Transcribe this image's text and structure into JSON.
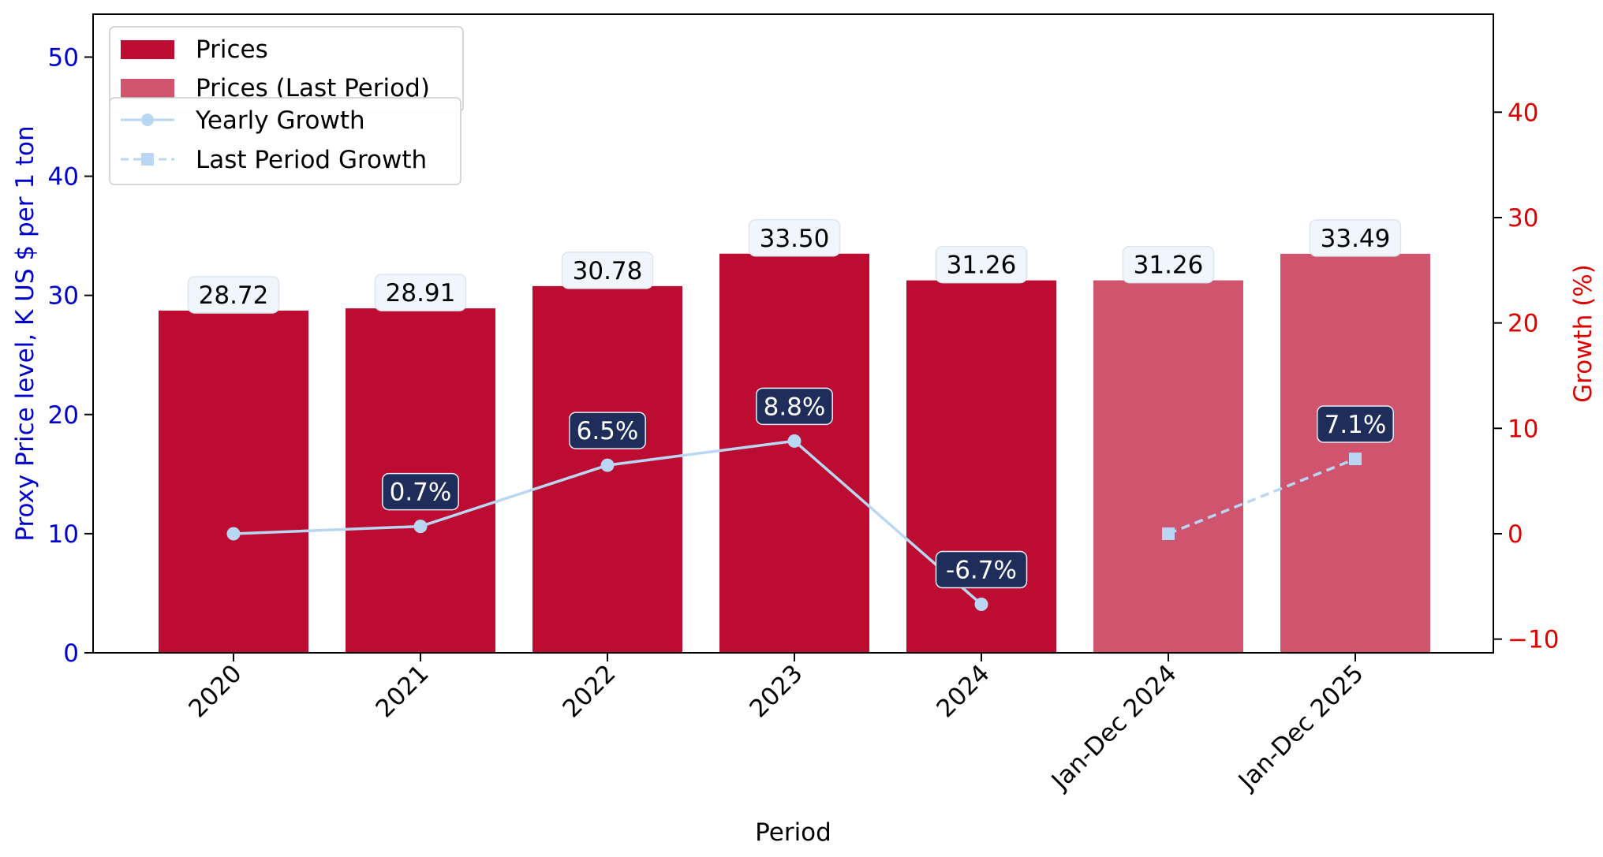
{
  "chart_data": {
    "type": "bar",
    "categories": [
      "2020",
      "2021",
      "2022",
      "2023",
      "2024",
      "Jan-Dec 2024",
      "Jan-Dec 2025"
    ],
    "xlabel": "Period",
    "ylabel_left": "Proxy Price level, K US $ per 1 ton",
    "ylabel_right": "Growth (%)",
    "ylim_left": [
      0,
      53.6
    ],
    "ylim_right": [
      -11.3,
      49.3
    ],
    "yticks_left": [
      0,
      10,
      20,
      30,
      40,
      50
    ],
    "yticks_right": [
      -10,
      0,
      10,
      20,
      30,
      40
    ],
    "grid": false,
    "legend_position": "top-left",
    "series": [
      {
        "name": "Prices",
        "kind": "bar",
        "color": "#BC0C32",
        "values": [
          28.72,
          28.91,
          30.78,
          33.5,
          31.26,
          null,
          null
        ],
        "labels": [
          "28.72",
          "28.91",
          "30.78",
          "33.50",
          "31.26",
          null,
          null
        ]
      },
      {
        "name": "Prices (Last Period)",
        "kind": "bar",
        "color": "#D0546E",
        "values": [
          null,
          null,
          null,
          null,
          null,
          31.26,
          33.49
        ],
        "labels": [
          null,
          null,
          null,
          null,
          null,
          "31.26",
          "33.49"
        ]
      },
      {
        "name": "Yearly Growth",
        "kind": "line",
        "axis": "right",
        "marker": "circle",
        "style": "solid",
        "color": "#B9D7F3",
        "values": [
          0.0,
          0.7,
          6.5,
          8.8,
          -6.7,
          null,
          null
        ],
        "labels": [
          null,
          "0.7%",
          "6.5%",
          "8.8%",
          "-6.7%",
          null,
          null
        ]
      },
      {
        "name": "Last Period Growth",
        "kind": "line",
        "axis": "right",
        "marker": "square",
        "style": "dashed",
        "color": "#B9D7F3",
        "values": [
          null,
          null,
          null,
          null,
          null,
          0.0,
          7.1
        ],
        "labels": [
          null,
          null,
          null,
          null,
          null,
          null,
          "7.1%"
        ]
      }
    ],
    "colors": {
      "left_axis": "#0000CC",
      "right_axis": "#DD0000",
      "value_label_bg": "#F0F6FC",
      "growth_label_bg": "#1F2D5A"
    }
  }
}
